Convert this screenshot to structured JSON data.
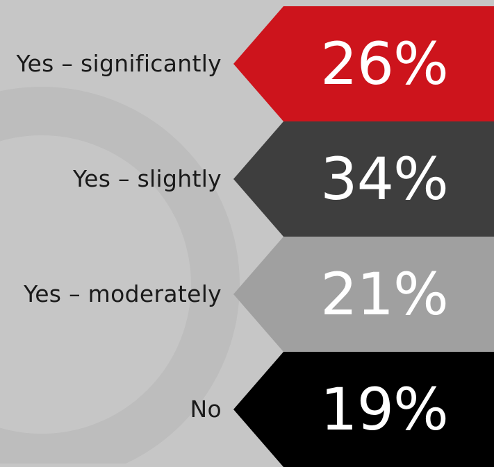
{
  "chart_data": {
    "type": "bar",
    "categories": [
      "Yes – significantly",
      "Yes – slightly",
      "Yes – moderately",
      "No"
    ],
    "values": [
      26,
      34,
      21,
      19
    ],
    "value_labels": [
      "26%",
      "34%",
      "21%",
      "19%"
    ],
    "unit": "%",
    "colors": [
      "#cd141c",
      "#3e3e3e",
      "#a0a0a0",
      "#000000"
    ],
    "background": "#c6c6c6",
    "title": "",
    "xlabel": "",
    "ylabel": ""
  }
}
